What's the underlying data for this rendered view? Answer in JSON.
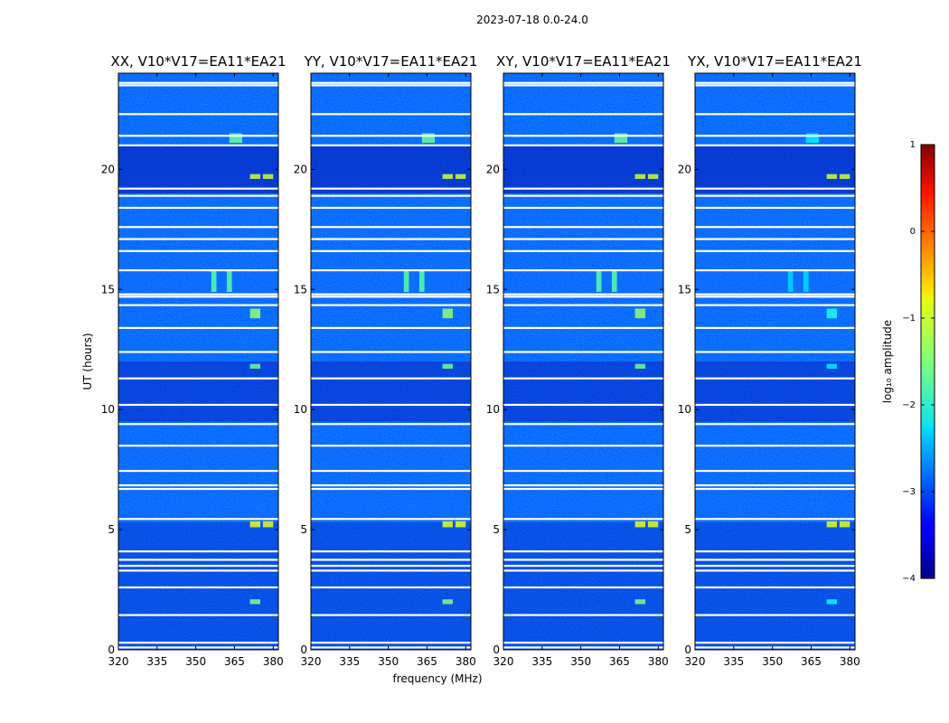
{
  "figure": {
    "title": "2023-07-18 0.0-24.0"
  },
  "chart_data": {
    "type": "heatmap",
    "title": "2023-07-18 0.0-24.0",
    "xlabel": "frequency (MHz)",
    "ylabel": "UT (hours)",
    "xlim": [
      320,
      382
    ],
    "ylim": [
      0,
      24
    ],
    "xticks": [
      320,
      335,
      350,
      365,
      380
    ],
    "xtick_labels": [
      "320",
      "335",
      "350",
      "365",
      "380"
    ],
    "yticks": [
      0,
      5,
      10,
      15,
      20
    ],
    "ytick_labels": [
      "0",
      "5",
      "10",
      "15",
      "20"
    ],
    "panels": [
      {
        "title": "XX, V10*V17=EA11*EA21",
        "pol": "XX"
      },
      {
        "title": "YY, V10*V17=EA11*EA21",
        "pol": "YY"
      },
      {
        "title": "XY, V10*V17=EA11*EA21",
        "pol": "XY"
      },
      {
        "title": "YX, V10*V17=EA11*EA21",
        "pol": "YX"
      }
    ],
    "colorbar": {
      "label": "log₁₀ amplitude",
      "range": [
        -4,
        1
      ],
      "ticks": [
        1,
        0,
        -1,
        -2,
        -3,
        -4
      ],
      "tick_labels": [
        "1",
        "0",
        "−1",
        "−2",
        "−3",
        "−4"
      ],
      "colormap": "jet"
    },
    "flagged_rows_hours": [
      0.1,
      0.3,
      1.45,
      2.6,
      3.3,
      3.5,
      3.75,
      4.1,
      5.45,
      6.7,
      6.85,
      7.45,
      8.5,
      9.4,
      10.2,
      11.3,
      12.4,
      13.4,
      14.35,
      14.7,
      14.8,
      15.8,
      16.6,
      17.1,
      17.6,
      18.4,
      18.9,
      19.2,
      21.0,
      21.4,
      22.3,
      23.5,
      23.6
    ],
    "rfi_features": [
      {
        "freq_mhz": [
          363,
          368
        ],
        "ut_hours": [
          21.1,
          21.5
        ],
        "level": -1.6
      },
      {
        "freq_mhz": [
          371,
          375
        ],
        "ut_hours": [
          19.6,
          19.8
        ],
        "level": -1.1
      },
      {
        "freq_mhz": [
          376,
          380
        ],
        "ut_hours": [
          19.6,
          19.8
        ],
        "level": -1.1
      },
      {
        "freq_mhz": [
          371,
          375
        ],
        "ut_hours": [
          5.1,
          5.35
        ],
        "level": -1.0
      },
      {
        "freq_mhz": [
          376,
          380
        ],
        "ut_hours": [
          5.1,
          5.35
        ],
        "level": -1.0
      },
      {
        "freq_mhz": [
          356,
          358
        ],
        "ut_hours": [
          14.9,
          15.8
        ],
        "level": -1.7
      },
      {
        "freq_mhz": [
          362,
          364
        ],
        "ut_hours": [
          14.9,
          15.8
        ],
        "level": -1.7
      },
      {
        "freq_mhz": [
          371,
          375
        ],
        "ut_hours": [
          13.8,
          14.2
        ],
        "level": -1.4
      },
      {
        "freq_mhz": [
          371,
          375
        ],
        "ut_hours": [
          11.7,
          11.9
        ],
        "level": -1.6
      },
      {
        "freq_mhz": [
          371,
          375
        ],
        "ut_hours": [
          1.9,
          2.1
        ],
        "level": -1.5
      }
    ],
    "background_level": -2.9
  }
}
